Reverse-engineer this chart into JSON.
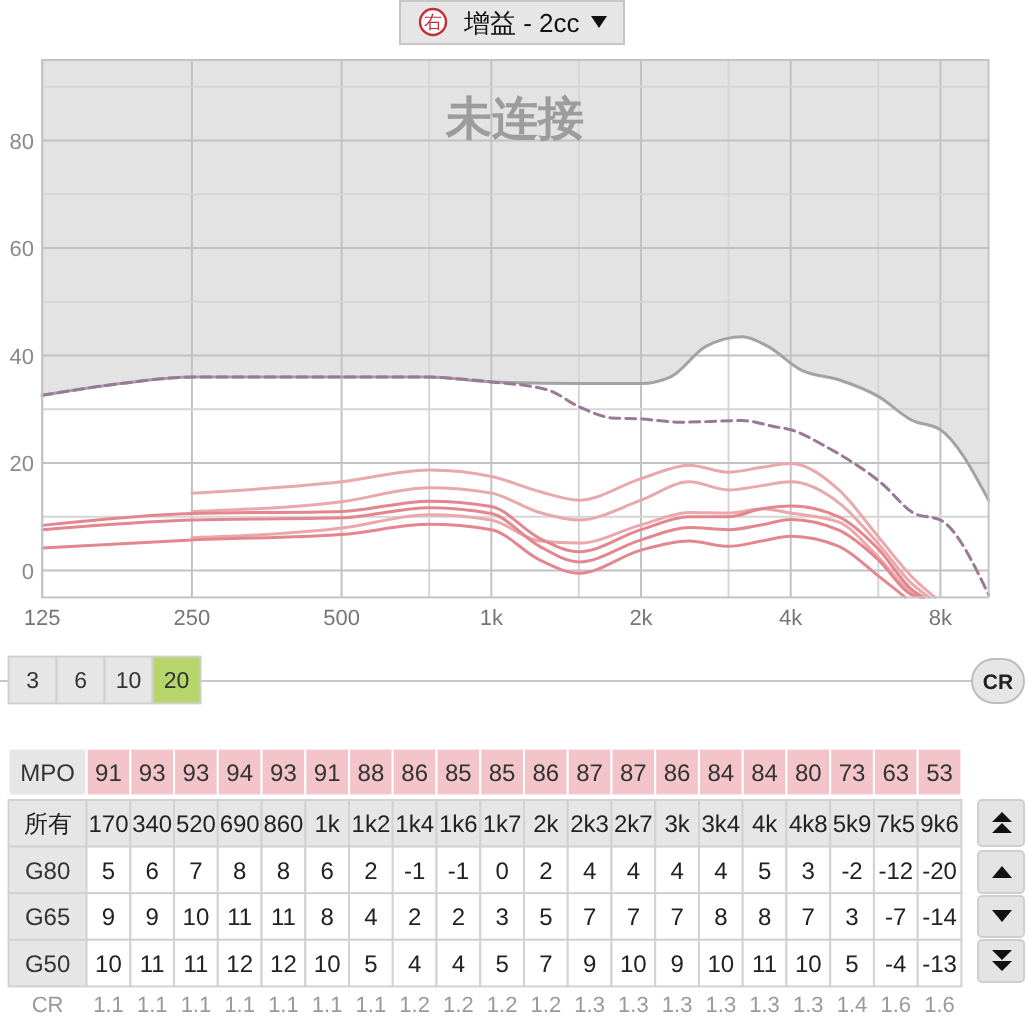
{
  "chart_data": [
    {
      "type": "line",
      "title": "增益 - 2cc",
      "annotations": [
        "未连接",
        "右",
        "3",
        "6",
        "10",
        "20",
        "CR"
      ],
      "log": "x",
      "grid": true,
      "xlim": [
        125,
        10000
      ],
      "ylim": [
        -5,
        95
      ],
      "xticks": [
        125,
        250,
        500,
        {
          "value": 750,
          "label": null
        },
        {
          "value": 1000,
          "label": "1k"
        },
        {
          "value": 1500,
          "label": null
        },
        {
          "value": 2000,
          "label": "2k"
        },
        {
          "value": 3000,
          "label": null
        },
        {
          "value": 4000,
          "label": "4k"
        },
        {
          "value": 6000,
          "label": null
        },
        {
          "value": 8000,
          "label": "8k"
        }
      ],
      "yticks": [
        0,
        {
          "value": 10,
          "label": null
        },
        20,
        {
          "value": 30,
          "label": null
        },
        40,
        {
          "value": 50,
          "label": null
        },
        60,
        {
          "value": 70,
          "label": null
        },
        80,
        {
          "value": 90,
          "label": null
        }
      ],
      "series": [
        {
          "color": "#a3a3a3",
          "x": [
            125,
            180,
            250,
            500,
            750,
            1000,
            1500,
            2000,
            2300,
            2700,
            3200,
            3600,
            4200,
            5000,
            6000,
            7000,
            8000,
            10000
          ],
          "values": [
            32.6,
            34.8,
            36,
            36,
            36,
            35.1,
            34.8,
            34.8,
            36.1,
            41.7,
            43.5,
            41.7,
            37.3,
            35.5,
            32.4,
            28,
            26.2,
            13.1
          ],
          "lower": [
            32.6,
            34.8,
            36,
            36,
            36,
            35.1,
            34.8,
            34.8,
            36.1,
            41.7,
            43.5,
            41.7,
            37.3,
            35.5,
            32.4,
            28,
            26.2,
            13.1
          ],
          "upper": [
            95,
            95,
            95,
            95,
            95,
            95,
            95,
            95,
            95,
            95,
            95,
            95,
            95,
            95,
            95,
            95,
            95,
            95
          ]
        },
        {
          "color": "#eaa8ad",
          "x": [
            250,
            500,
            750,
            1000,
            1250,
            1500,
            2000,
            2500,
            3000,
            3500,
            4000,
            5000,
            6000,
            7000,
            7800
          ],
          "values": [
            14.4,
            16.5,
            18.7,
            17.5,
            14.7,
            13.1,
            17.1,
            19.6,
            18.3,
            19.2,
            19.9,
            15,
            6.3,
            -1.1,
            -5
          ]
        },
        {
          "color": "#eaa8ad",
          "x": [
            250,
            500,
            750,
            1000,
            1250,
            1500,
            2000,
            2500,
            3000,
            3500,
            4000,
            5000,
            6000,
            7000,
            7600
          ],
          "values": [
            11,
            12.8,
            15.4,
            14.4,
            10.8,
            9.4,
            13.1,
            16.5,
            15,
            15.8,
            16.5,
            12.6,
            5,
            -2.4,
            -5
          ]
        },
        {
          "color": "#eaa8ad",
          "x": [
            250,
            500,
            750,
            1000,
            1250,
            1500,
            2000,
            2500,
            3000,
            3500,
            4000,
            5000,
            6000,
            7000,
            7400
          ],
          "values": [
            6.1,
            7.9,
            10.4,
            9.4,
            5.5,
            5.1,
            8.5,
            10.8,
            10.7,
            11.5,
            10.7,
            9,
            2.5,
            -4,
            -5
          ]
        },
        {
          "color": "#e4868e",
          "x": [
            125,
            250,
            500,
            750,
            1000,
            1250,
            1500,
            2000,
            2500,
            3000,
            3500,
            4000,
            5000,
            6000,
            7000,
            7400
          ],
          "values": [
            8.4,
            10.6,
            11,
            12.9,
            11.9,
            6,
            3.5,
            7.6,
            10,
            10,
            11.5,
            12,
            10,
            4,
            -3.5,
            -5
          ]
        },
        {
          "color": "#e4868e",
          "x": [
            125,
            250,
            500,
            750,
            1000,
            1250,
            1500,
            2000,
            2500,
            3000,
            3500,
            4000,
            5000,
            6000,
            7000,
            7300
          ],
          "values": [
            7.6,
            9.4,
            9.8,
            11.7,
            10.6,
            4.5,
            1.6,
            5.7,
            8,
            7.6,
            8.5,
            9.5,
            7.5,
            2,
            -4.5,
            -5
          ]
        },
        {
          "color": "#e4868e",
          "x": [
            125,
            250,
            500,
            750,
            1000,
            1250,
            1500,
            2000,
            2500,
            3000,
            3500,
            4000,
            5000,
            6000,
            6800
          ],
          "values": [
            4.2,
            5.7,
            6.7,
            8.6,
            7.6,
            2,
            -0.5,
            3.8,
            5.5,
            4.5,
            5.5,
            6.4,
            4.5,
            -1,
            -5
          ]
        },
        {
          "color": "#9a7896",
          "line_style": "dashed",
          "x": [
            125,
            180,
            250,
            500,
            750,
            850,
            1000,
            1300,
            1500,
            1750,
            2000,
            2400,
            3200,
            3700,
            4000,
            4700,
            6100,
            7100,
            8000,
            10000
          ],
          "values": [
            32.6,
            34.8,
            36,
            36,
            36,
            35.7,
            35.1,
            33.6,
            30.5,
            28.4,
            28.2,
            27.6,
            27.9,
            26.8,
            26.2,
            23.1,
            16.2,
            10.6,
            9.4,
            -4.5
          ]
        }
      ]
    },
    {
      "type": "heatmap",
      "xlabel": "所有",
      "data_labels": true,
      "categories": [
        "170",
        "340",
        "520",
        "690",
        "860",
        "1k",
        "1k2",
        "1k4",
        "1k6",
        "1k7",
        "2k",
        "2k3",
        "2k7",
        "3k",
        "3k4",
        "4k",
        "4k8",
        "5k9",
        "7k5",
        "9k6"
      ],
      "y_categories": [
        "MPO",
        "G80",
        "G65",
        "G50",
        "CR"
      ],
      "cells": [
        [
          91,
          93,
          93,
          94,
          93,
          91,
          88,
          86,
          85,
          85,
          86,
          87,
          87,
          86,
          84,
          84,
          80,
          73,
          63,
          53
        ],
        [
          5,
          6,
          7,
          8,
          8,
          6,
          2,
          -1,
          -1,
          0,
          2,
          4,
          4,
          4,
          4,
          5,
          3,
          -2,
          -12,
          -20
        ],
        [
          9,
          9,
          10,
          11,
          11,
          8,
          4,
          2,
          2,
          3,
          5,
          7,
          7,
          7,
          8,
          8,
          7,
          3,
          -7,
          -14
        ],
        [
          10,
          11,
          11,
          12,
          12,
          10,
          5,
          4,
          4,
          5,
          7,
          9,
          10,
          9,
          10,
          11,
          10,
          5,
          -4,
          -13
        ],
        [
          1.1,
          1.1,
          1.1,
          1.1,
          1.1,
          1.1,
          1.1,
          1.2,
          1.2,
          1.2,
          1.2,
          1.3,
          1.3,
          1.3,
          1.3,
          1.3,
          1.3,
          1.4,
          1.6,
          1.6
        ]
      ]
    }
  ]
}
